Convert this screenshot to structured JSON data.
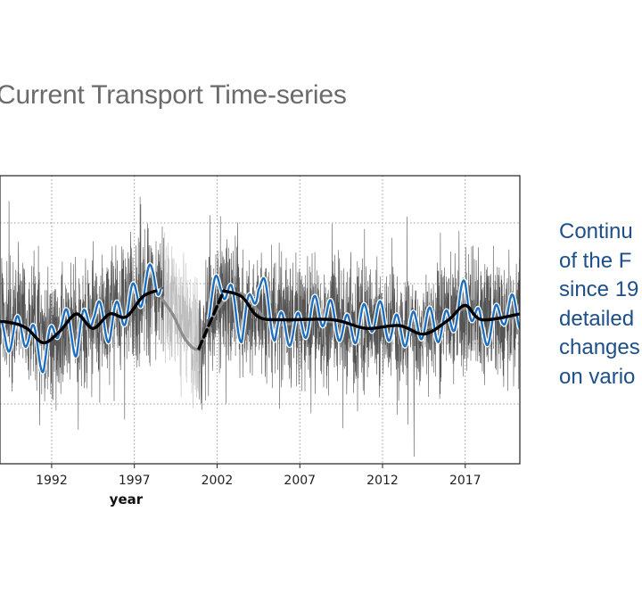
{
  "slide": {
    "title": "Current Transport Time-series",
    "side_text_lines": [
      "Continu",
      "of the F",
      "since 19",
      "detailed",
      "changes",
      "on vario"
    ]
  },
  "colors": {
    "title": "#6b6b6b",
    "side_text": "#1d4f8a",
    "raw_series": "#555555",
    "band_series": "#1f6fbf",
    "smooth_series": "#000000",
    "gap_series": "#8c8c8c"
  },
  "chart_data": {
    "type": "line",
    "title": "",
    "xlabel": "year",
    "ylabel": "",
    "x_ticks": [
      1992,
      1997,
      2002,
      2007,
      2012,
      2017
    ],
    "xlim": [
      1987.8,
      2020.3
    ],
    "ylim": [
      0,
      100
    ],
    "grid": true,
    "gap": [
      1998.8,
      2000.9
    ],
    "series": [
      {
        "role": "raw-daily",
        "style": "thin gray vertical noise",
        "baseline": [
          [
            1987.8,
            50
          ],
          [
            1990,
            50
          ],
          [
            1992,
            44
          ],
          [
            1995,
            52
          ],
          [
            1997,
            56
          ],
          [
            1998,
            62
          ],
          [
            1998.8,
            60
          ],
          [
            2000.9,
            40
          ],
          [
            2002,
            58
          ],
          [
            2005,
            50
          ],
          [
            2010,
            48
          ],
          [
            2014,
            46
          ],
          [
            2017,
            52
          ],
          [
            2020.3,
            50
          ]
        ],
        "amplitude": 22
      },
      {
        "role": "band-filtered",
        "style": "blue with white halo",
        "points": [
          [
            1987.8,
            45
          ],
          [
            1989,
            46
          ],
          [
            1990.5,
            44
          ],
          [
            1991.5,
            38
          ],
          [
            1992.5,
            52
          ],
          [
            1993.5,
            40
          ],
          [
            1994.5,
            56
          ],
          [
            1995.5,
            48
          ],
          [
            1996.5,
            52
          ],
          [
            1997.5,
            62
          ],
          [
            1998.2,
            68
          ],
          [
            1998.8,
            60
          ],
          [
            2000.9,
            40
          ],
          [
            2001.5,
            55
          ],
          [
            2002.3,
            62
          ],
          [
            2003.5,
            48
          ],
          [
            2004.5,
            65
          ],
          [
            2005.5,
            45
          ],
          [
            2008,
            52
          ],
          [
            2010,
            48
          ],
          [
            2012,
            50
          ],
          [
            2014,
            46
          ],
          [
            2016,
            50
          ],
          [
            2017,
            58
          ],
          [
            2018,
            45
          ],
          [
            2019.3,
            55
          ],
          [
            2020.3,
            50
          ]
        ]
      },
      {
        "role": "smoothed",
        "style": "thick black",
        "points": [
          [
            1987.8,
            50
          ],
          [
            1989.5,
            49
          ],
          [
            1990.5,
            47
          ],
          [
            1991.5,
            42
          ],
          [
            1992.5,
            46
          ],
          [
            1993.5,
            52
          ],
          [
            1994.5,
            47
          ],
          [
            1995.5,
            52
          ],
          [
            1996.5,
            51
          ],
          [
            1997.5,
            58
          ],
          [
            1998.3,
            60
          ],
          [
            1999,
            58
          ],
          [
            2000.9,
            40
          ],
          [
            2001.8,
            52
          ],
          [
            2002.4,
            60
          ],
          [
            2003.5,
            58
          ],
          [
            2004.5,
            51
          ],
          [
            2006,
            50
          ],
          [
            2009,
            50
          ],
          [
            2011,
            47
          ],
          [
            2013,
            48
          ],
          [
            2014.5,
            45
          ],
          [
            2016,
            50
          ],
          [
            2017,
            55
          ],
          [
            2018,
            50
          ],
          [
            2020.3,
            52
          ]
        ]
      },
      {
        "role": "gap-fill",
        "style": "thick gray",
        "points": [
          [
            1998.3,
            60
          ],
          [
            1999.3,
            52
          ],
          [
            2000.1,
            43
          ],
          [
            2000.9,
            40
          ],
          [
            2001.6,
            49
          ],
          [
            2002.5,
            57
          ],
          [
            2003.5,
            59
          ],
          [
            2004.5,
            53
          ],
          [
            2005.5,
            48
          ],
          [
            2008,
            50
          ],
          [
            2011,
            47
          ],
          [
            2013,
            48
          ],
          [
            2014.5,
            47
          ],
          [
            2016,
            50
          ],
          [
            2017,
            54
          ],
          [
            2018,
            50
          ],
          [
            2020.3,
            51
          ]
        ]
      }
    ]
  }
}
